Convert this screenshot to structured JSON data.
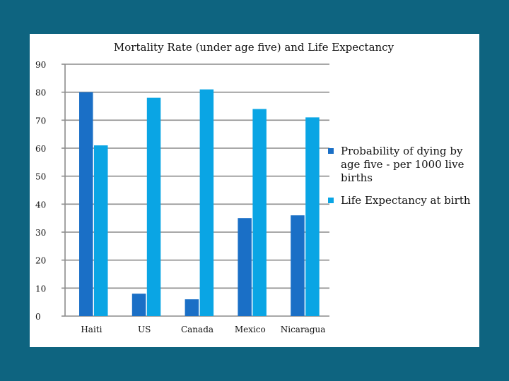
{
  "chart_data": {
    "type": "bar",
    "title": "Mortality Rate (under age five) and Life Expectancy",
    "categories": [
      "Haiti",
      "US",
      "Canada",
      "Mexico",
      "Nicaragua"
    ],
    "series": [
      {
        "name": "Probability of dying by age five - per 1000 live births",
        "values": [
          80,
          8,
          6,
          35,
          36
        ],
        "color": "#1a6fc6"
      },
      {
        "name": "Life Expectancy at birth",
        "values": [
          61,
          78,
          81,
          74,
          71
        ],
        "color": "#0aa5e4"
      }
    ],
    "ylim": [
      0,
      90
    ],
    "yticks": [
      0,
      10,
      20,
      30,
      40,
      50,
      60,
      70,
      80,
      90
    ],
    "grid": true,
    "legend_position": "right",
    "xlabel": "",
    "ylabel": ""
  }
}
